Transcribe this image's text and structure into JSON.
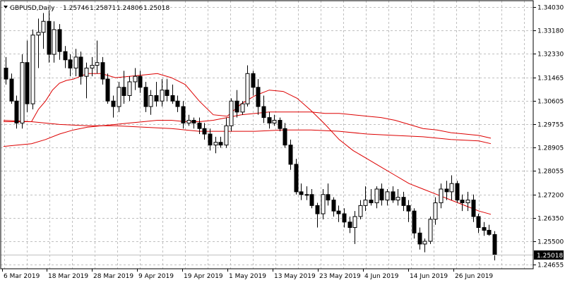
{
  "chart_data": {
    "type": "candlestick",
    "symbol": "GBPUSD,Daily",
    "ohlc_readout": [
      "1.25746",
      "1.25871",
      "1.24806",
      "1.25018"
    ],
    "current_price_label": "1.25018",
    "grid": true,
    "ylim": [
      1.245,
      1.3425
    ],
    "y_ticks": [
      "1.34030",
      "1.33180",
      "1.32330",
      "1.31465",
      "1.30605",
      "1.29755",
      "1.28905",
      "1.28055",
      "1.27200",
      "1.26350",
      "1.25500",
      "1.24655"
    ],
    "x_ticks": [
      "6 Mar 2019",
      "18 Mar 2019",
      "28 Mar 2019",
      "9 Apr 2019",
      "19 Apr 2019",
      "1 May 2019",
      "13 May 2019",
      "23 May 2019",
      "4 Jun 2019",
      "14 Jun 2019",
      "26 Jun 2019"
    ],
    "candles": [
      [
        1.318,
        1.322,
        1.312,
        1.314
      ],
      [
        1.314,
        1.316,
        1.305,
        1.306
      ],
      [
        1.306,
        1.308,
        1.296,
        1.298
      ],
      [
        1.298,
        1.323,
        1.296,
        1.32
      ],
      [
        1.32,
        1.328,
        1.302,
        1.305
      ],
      [
        1.305,
        1.332,
        1.303,
        1.33
      ],
      [
        1.33,
        1.336,
        1.318,
        1.331
      ],
      [
        1.331,
        1.338,
        1.325,
        1.335
      ],
      [
        1.335,
        1.339,
        1.32,
        1.323
      ],
      [
        1.323,
        1.335,
        1.32,
        1.332
      ],
      [
        1.332,
        1.334,
        1.321,
        1.324
      ],
      [
        1.324,
        1.326,
        1.318,
        1.321
      ],
      [
        1.321,
        1.323,
        1.315,
        1.318
      ],
      [
        1.318,
        1.325,
        1.315,
        1.322
      ],
      [
        1.322,
        1.324,
        1.312,
        1.315
      ],
      [
        1.315,
        1.32,
        1.307,
        1.318
      ],
      [
        1.318,
        1.322,
        1.315,
        1.319
      ],
      [
        1.319,
        1.328,
        1.316,
        1.32
      ],
      [
        1.32,
        1.322,
        1.312,
        1.314
      ],
      [
        1.314,
        1.316,
        1.305,
        1.306
      ],
      [
        1.306,
        1.308,
        1.3,
        1.304
      ],
      [
        1.304,
        1.313,
        1.302,
        1.311
      ],
      [
        1.311,
        1.317,
        1.305,
        1.308
      ],
      [
        1.308,
        1.315,
        1.306,
        1.313
      ],
      [
        1.313,
        1.318,
        1.31,
        1.315
      ],
      [
        1.315,
        1.317,
        1.309,
        1.311
      ],
      [
        1.311,
        1.313,
        1.302,
        1.304
      ],
      [
        1.304,
        1.31,
        1.301,
        1.308
      ],
      [
        1.308,
        1.313,
        1.304,
        1.306
      ],
      [
        1.306,
        1.314,
        1.304,
        1.31
      ],
      [
        1.31,
        1.314,
        1.306,
        1.308
      ],
      [
        1.308,
        1.312,
        1.305,
        1.306
      ],
      [
        1.306,
        1.308,
        1.302,
        1.304
      ],
      [
        1.304,
        1.306,
        1.296,
        1.298
      ],
      [
        1.298,
        1.301,
        1.297,
        1.299
      ],
      [
        1.299,
        1.3,
        1.296,
        1.298
      ],
      [
        1.298,
        1.3,
        1.294,
        1.296
      ],
      [
        1.296,
        1.298,
        1.292,
        1.294
      ],
      [
        1.294,
        1.296,
        1.288,
        1.29
      ],
      [
        1.29,
        1.293,
        1.287,
        1.291
      ],
      [
        1.291,
        1.293,
        1.289,
        1.29
      ],
      [
        1.29,
        1.3,
        1.289,
        1.297
      ],
      [
        1.297,
        1.307,
        1.295,
        1.306
      ],
      [
        1.306,
        1.31,
        1.3,
        1.302
      ],
      [
        1.302,
        1.306,
        1.301,
        1.305
      ],
      [
        1.305,
        1.319,
        1.304,
        1.316
      ],
      [
        1.316,
        1.317,
        1.308,
        1.311
      ],
      [
        1.311,
        1.314,
        1.301,
        1.304
      ],
      [
        1.304,
        1.308,
        1.298,
        1.3
      ],
      [
        1.3,
        1.302,
        1.296,
        1.298
      ],
      [
        1.298,
        1.301,
        1.297,
        1.299
      ],
      [
        1.299,
        1.3,
        1.295,
        1.296
      ],
      [
        1.296,
        1.298,
        1.289,
        1.29
      ],
      [
        1.29,
        1.292,
        1.281,
        1.283
      ],
      [
        1.283,
        1.285,
        1.272,
        1.273
      ],
      [
        1.273,
        1.276,
        1.27,
        1.272
      ],
      [
        1.272,
        1.275,
        1.27,
        1.272
      ],
      [
        1.272,
        1.274,
        1.267,
        1.268
      ],
      [
        1.268,
        1.269,
        1.26,
        1.265
      ],
      [
        1.265,
        1.274,
        1.263,
        1.272
      ],
      [
        1.272,
        1.276,
        1.268,
        1.27
      ],
      [
        1.27,
        1.271,
        1.264,
        1.266
      ],
      [
        1.266,
        1.268,
        1.262,
        1.265
      ],
      [
        1.265,
        1.267,
        1.26,
        1.262
      ],
      [
        1.262,
        1.264,
        1.258,
        1.26
      ],
      [
        1.26,
        1.266,
        1.254,
        1.264
      ],
      [
        1.264,
        1.27,
        1.263,
        1.268
      ],
      [
        1.268,
        1.275,
        1.266,
        1.27
      ],
      [
        1.27,
        1.274,
        1.268,
        1.269
      ],
      [
        1.269,
        1.275,
        1.267,
        1.274
      ],
      [
        1.274,
        1.276,
        1.268,
        1.27
      ],
      [
        1.27,
        1.274,
        1.268,
        1.273
      ],
      [
        1.273,
        1.275,
        1.269,
        1.27
      ],
      [
        1.27,
        1.274,
        1.268,
        1.271
      ],
      [
        1.271,
        1.273,
        1.266,
        1.268
      ],
      [
        1.268,
        1.27,
        1.262,
        1.266
      ],
      [
        1.266,
        1.267,
        1.256,
        1.258
      ],
      [
        1.258,
        1.26,
        1.252,
        1.254
      ],
      [
        1.254,
        1.256,
        1.251,
        1.255
      ],
      [
        1.255,
        1.264,
        1.254,
        1.263
      ],
      [
        1.263,
        1.271,
        1.261,
        1.269
      ],
      [
        1.269,
        1.276,
        1.267,
        1.274
      ],
      [
        1.274,
        1.277,
        1.27,
        1.273
      ],
      [
        1.273,
        1.279,
        1.27,
        1.276
      ],
      [
        1.276,
        1.277,
        1.269,
        1.27
      ],
      [
        1.27,
        1.272,
        1.266,
        1.269
      ],
      [
        1.269,
        1.273,
        1.266,
        1.27
      ],
      [
        1.27,
        1.272,
        1.262,
        1.264
      ],
      [
        1.264,
        1.265,
        1.258,
        1.26
      ],
      [
        1.26,
        1.262,
        1.257,
        1.259
      ],
      [
        1.259,
        1.261,
        1.257,
        1.2575
      ],
      [
        1.25746,
        1.25871,
        1.24806,
        1.25018
      ]
    ],
    "ma_fast": [
      [
        0,
        1.2985
      ],
      [
        20,
        1.2985
      ],
      [
        40,
        1.2985
      ],
      [
        50,
        1.303
      ],
      [
        60,
        1.306
      ],
      [
        70,
        1.31
      ],
      [
        80,
        1.3125
      ],
      [
        90,
        1.3135
      ],
      [
        100,
        1.314
      ],
      [
        110,
        1.315
      ],
      [
        120,
        1.316
      ],
      [
        140,
        1.316
      ],
      [
        160,
        1.3145
      ],
      [
        180,
        1.315
      ],
      [
        200,
        1.3155
      ],
      [
        220,
        1.316
      ],
      [
        240,
        1.3145
      ],
      [
        260,
        1.312
      ],
      [
        280,
        1.306
      ],
      [
        300,
        1.301
      ],
      [
        320,
        1.3005
      ],
      [
        340,
        1.305
      ],
      [
        360,
        1.308
      ],
      [
        380,
        1.31
      ],
      [
        400,
        1.3095
      ],
      [
        420,
        1.307
      ],
      [
        440,
        1.3025
      ],
      [
        460,
        1.2975
      ],
      [
        480,
        1.292
      ],
      [
        500,
        1.288
      ],
      [
        520,
        1.285
      ],
      [
        540,
        1.282
      ],
      [
        560,
        1.279
      ],
      [
        580,
        1.276
      ],
      [
        600,
        1.274
      ],
      [
        620,
        1.272
      ],
      [
        640,
        1.27
      ],
      [
        660,
        1.268
      ],
      [
        680,
        1.266
      ],
      [
        697,
        1.2648
      ]
    ],
    "ma_mid": [
      [
        0,
        1.2895
      ],
      [
        20,
        1.29
      ],
      [
        40,
        1.2905
      ],
      [
        60,
        1.292
      ],
      [
        80,
        1.294
      ],
      [
        100,
        1.2955
      ],
      [
        120,
        1.2965
      ],
      [
        140,
        1.297
      ],
      [
        160,
        1.2975
      ],
      [
        180,
        1.298
      ],
      [
        200,
        1.2985
      ],
      [
        220,
        1.299
      ],
      [
        240,
        1.299
      ],
      [
        260,
        1.2985
      ],
      [
        280,
        1.2985
      ],
      [
        300,
        1.299
      ],
      [
        320,
        1.3
      ],
      [
        340,
        1.301
      ],
      [
        360,
        1.3015
      ],
      [
        380,
        1.302
      ],
      [
        400,
        1.302
      ],
      [
        420,
        1.302
      ],
      [
        440,
        1.302
      ],
      [
        460,
        1.3015
      ],
      [
        480,
        1.3015
      ],
      [
        500,
        1.301
      ],
      [
        520,
        1.3005
      ],
      [
        540,
        1.3
      ],
      [
        560,
        1.299
      ],
      [
        580,
        1.2975
      ],
      [
        600,
        1.296
      ],
      [
        620,
        1.2955
      ],
      [
        640,
        1.2945
      ],
      [
        660,
        1.294
      ],
      [
        680,
        1.2935
      ],
      [
        697,
        1.2925
      ]
    ],
    "ma_slow": [
      [
        0,
        1.299
      ],
      [
        40,
        1.2985
      ],
      [
        80,
        1.2975
      ],
      [
        120,
        1.297
      ],
      [
        160,
        1.297
      ],
      [
        200,
        1.2965
      ],
      [
        240,
        1.296
      ],
      [
        280,
        1.295
      ],
      [
        320,
        1.295
      ],
      [
        360,
        1.295
      ],
      [
        400,
        1.2955
      ],
      [
        440,
        1.2955
      ],
      [
        480,
        1.295
      ],
      [
        520,
        1.294
      ],
      [
        560,
        1.2935
      ],
      [
        600,
        1.293
      ],
      [
        640,
        1.292
      ],
      [
        680,
        1.2915
      ],
      [
        697,
        1.2905
      ]
    ]
  },
  "colors": {
    "grid": "#c0c0c0",
    "candle": "#000000",
    "ma": "#dd0000",
    "price_line": "#c0c0c0"
  }
}
